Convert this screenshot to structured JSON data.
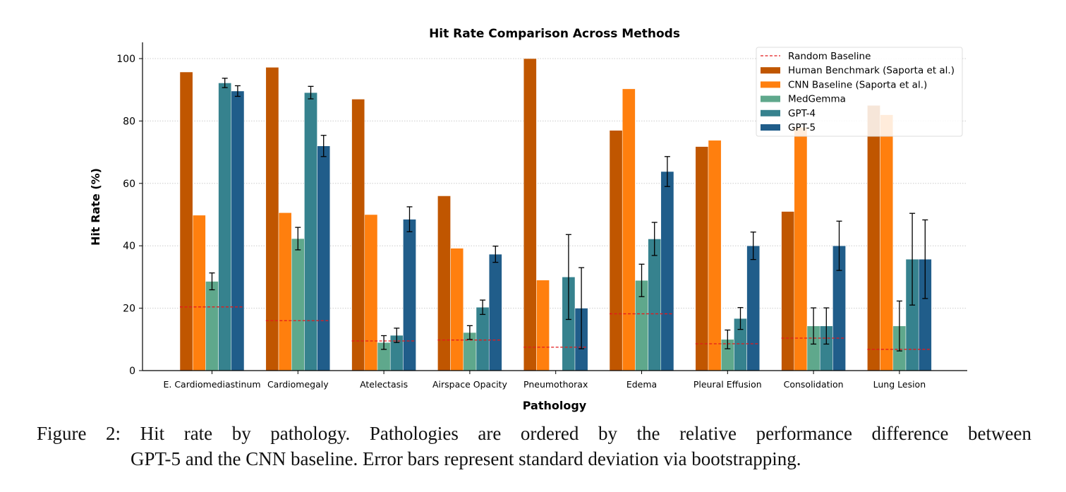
{
  "chart_data": {
    "type": "bar",
    "title": "Hit Rate Comparison Across Methods",
    "xlabel": "Pathology",
    "ylabel": "Hit Rate (%)",
    "ylim": [
      0,
      105
    ],
    "yticks": [
      0,
      20,
      40,
      60,
      80,
      100
    ],
    "grid": true,
    "legend_position": "top-right",
    "categories": [
      "E. Cardiomediastinum",
      "Cardiomegaly",
      "Atelectasis",
      "Airspace Opacity",
      "Pneumothorax",
      "Edema",
      "Pleural Effusion",
      "Consolidation",
      "Lung Lesion"
    ],
    "series": [
      {
        "name": "Human Benchmark (Saporta et al.)",
        "color": "#c05600",
        "values": [
          95.7,
          97.2,
          87.0,
          56.0,
          100.0,
          77.0,
          71.8,
          51.0,
          85.0
        ]
      },
      {
        "name": "CNN Baseline (Saporta et al.)",
        "color": "#ff7f0e",
        "values": [
          49.8,
          50.6,
          50.0,
          39.2,
          29.0,
          90.3,
          73.8,
          78.0,
          82.0
        ]
      },
      {
        "name": "MedGemma",
        "color": "#5fa88c",
        "values": [
          28.6,
          42.3,
          9.0,
          12.2,
          0.0,
          28.9,
          10.0,
          14.3,
          14.3
        ],
        "errors": [
          2.7,
          3.6,
          2.2,
          2.2,
          0,
          5.2,
          3.0,
          5.8,
          8.0
        ]
      },
      {
        "name": "GPT-4",
        "color": "#36828e",
        "values": [
          92.2,
          89.1,
          11.3,
          20.3,
          30.0,
          42.2,
          16.7,
          14.3,
          35.7
        ],
        "errors": [
          1.5,
          2.0,
          2.3,
          2.3,
          13.6,
          5.3,
          3.5,
          5.8,
          14.7
        ]
      },
      {
        "name": "GPT-5",
        "color": "#205d8a",
        "values": [
          89.6,
          72.0,
          48.5,
          37.3,
          20.0,
          63.8,
          40.0,
          40.0,
          35.7
        ],
        "errors": [
          1.7,
          3.4,
          4.0,
          2.6,
          13.0,
          4.8,
          4.4,
          7.9,
          12.6
        ]
      }
    ],
    "random_baseline": {
      "name": "Random Baseline",
      "color": "#e31a1c",
      "values": [
        20.4,
        16.0,
        9.5,
        9.8,
        7.5,
        18.2,
        8.6,
        10.4,
        6.8
      ]
    }
  },
  "caption": {
    "line1": "Figure 2: Hit rate by pathology. Pathologies are ordered by the relative performance difference between",
    "line2": "GPT-5 and the CNN baseline. Error bars represent standard deviation via bootstrapping."
  }
}
